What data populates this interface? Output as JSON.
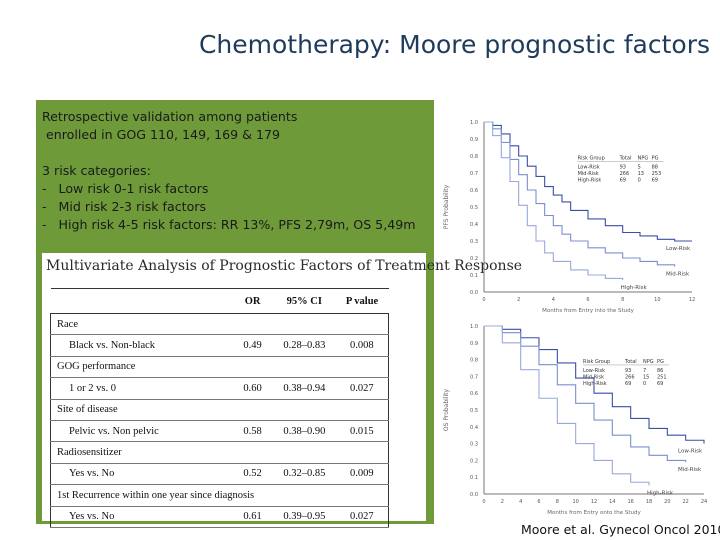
{
  "slide": {
    "title": "Chemotherapy: Moore prognostic factors",
    "citation": "Moore et al. Gynecol Oncol 2010"
  },
  "summary": {
    "lines": [
      "Retrospective validation among patients",
      " enrolled in GOG 110, 149, 169 & 179",
      "",
      "3 risk categories:",
      "-   Low risk 0-1 risk factors",
      "-   Mid risk 2-3 risk factors",
      "-   High risk 4-5 risk factors: RR 13%, PFS 2,79m, OS 5,49m"
    ]
  },
  "table": {
    "title": "Multivariate Analysis of Prognostic Factors of Treatment Response",
    "headers": [
      "",
      "OR",
      "95% CI",
      "P value"
    ],
    "rows": [
      {
        "label": "Race",
        "group": true
      },
      {
        "label": "Black vs. Non-black",
        "or": "0.49",
        "ci": "0.28–0.83",
        "p": "0.008"
      },
      {
        "label": "GOG performance",
        "group": true
      },
      {
        "label": "1 or 2 vs. 0",
        "or": "0.60",
        "ci": "0.38–0.94",
        "p": "0.027"
      },
      {
        "label": "Site of disease",
        "group": true
      },
      {
        "label": "Pelvic vs. Non pelvic",
        "or": "0.58",
        "ci": "0.38–0.90",
        "p": "0.015"
      },
      {
        "label": "Radiosensitizer",
        "group": true
      },
      {
        "label": "Yes vs. No",
        "or": "0.52",
        "ci": "0.32–0.85",
        "p": "0.009"
      },
      {
        "label": "1st Recurrence within one year since diagnosis",
        "group": true
      },
      {
        "label": "Yes vs. No",
        "or": "0.61",
        "ci": "0.39–0.95",
        "p": "0.027"
      }
    ]
  },
  "chart_data": [
    {
      "type": "line",
      "ylabel": "PFS Probability",
      "xlabel": "Months from Entry into the Study",
      "xlim": [
        0,
        12
      ],
      "ylim": [
        0,
        1.0
      ],
      "xticks": [
        "0",
        "2",
        "4",
        "6",
        "8",
        "10",
        "12"
      ],
      "yticks": [
        "0.0",
        "0.1",
        "0.2",
        "0.3",
        "0.4",
        "0.5",
        "0.6",
        "0.7",
        "0.8",
        "0.9",
        "1.0"
      ],
      "legend": {
        "headers": [
          "Risk Group",
          "Total",
          "NPG",
          "PG"
        ],
        "rows": [
          [
            "Low-Risk",
            "93",
            "5",
            "88"
          ],
          [
            "Mid-Risk",
            "266",
            "13",
            "253"
          ],
          [
            "High-Risk",
            "69",
            "0",
            "69"
          ]
        ]
      },
      "series": [
        {
          "label": "Low-Risk",
          "color": "#3a4fa8",
          "x": [
            0,
            0.5,
            1,
            1.5,
            2,
            2.5,
            3,
            3.5,
            4,
            4.5,
            5,
            6,
            7,
            8,
            9,
            10,
            11,
            12
          ],
          "y": [
            1.0,
            0.98,
            0.93,
            0.86,
            0.8,
            0.74,
            0.68,
            0.62,
            0.57,
            0.53,
            0.48,
            0.43,
            0.39,
            0.35,
            0.33,
            0.31,
            0.3,
            0.3
          ]
        },
        {
          "label": "Mid-Risk",
          "color": "#7b8fcf",
          "x": [
            0,
            0.5,
            1,
            1.5,
            2,
            2.5,
            3,
            3.5,
            4,
            4.5,
            5,
            6,
            7,
            8,
            9,
            10,
            11
          ],
          "y": [
            1.0,
            0.96,
            0.88,
            0.78,
            0.69,
            0.6,
            0.52,
            0.45,
            0.39,
            0.34,
            0.3,
            0.26,
            0.23,
            0.2,
            0.18,
            0.16,
            0.15
          ]
        },
        {
          "label": "High-Risk",
          "color": "#9aa8dc",
          "x": [
            0,
            0.5,
            1,
            1.5,
            2,
            2.5,
            3,
            3.5,
            4,
            5,
            6,
            7,
            8
          ],
          "y": [
            1.0,
            0.92,
            0.79,
            0.65,
            0.51,
            0.39,
            0.3,
            0.23,
            0.18,
            0.13,
            0.1,
            0.08,
            0.07
          ]
        }
      ]
    },
    {
      "type": "line",
      "ylabel": "OS Probability",
      "xlabel": "Months from Entry onto the Study",
      "xlim": [
        0,
        24
      ],
      "ylim": [
        0,
        1.0
      ],
      "xticks": [
        "0",
        "2",
        "4",
        "6",
        "8",
        "10",
        "12",
        "14",
        "16",
        "18",
        "20",
        "22",
        "24"
      ],
      "yticks": [
        "0.0",
        "0.1",
        "0.2",
        "0.3",
        "0.4",
        "0.5",
        "0.6",
        "0.7",
        "0.8",
        "0.9",
        "1.0"
      ],
      "legend": {
        "headers": [
          "Risk Group",
          "Total",
          "NPG",
          "PG"
        ],
        "rows": [
          [
            "Low-Risk",
            "93",
            "7",
            "86"
          ],
          [
            "Mid-Risk",
            "266",
            "15",
            "251"
          ],
          [
            "High-Risk",
            "69",
            "0",
            "69"
          ]
        ]
      },
      "series": [
        {
          "label": "Low-Risk",
          "color": "#3a4fa8",
          "x": [
            0,
            2,
            4,
            6,
            8,
            10,
            12,
            14,
            16,
            18,
            20,
            22,
            24
          ],
          "y": [
            1.0,
            0.98,
            0.93,
            0.86,
            0.78,
            0.69,
            0.6,
            0.52,
            0.45,
            0.39,
            0.35,
            0.32,
            0.3
          ]
        },
        {
          "label": "Mid-Risk",
          "color": "#7b8fcf",
          "x": [
            0,
            2,
            4,
            6,
            8,
            10,
            12,
            14,
            16,
            18,
            20,
            22
          ],
          "y": [
            1.0,
            0.96,
            0.88,
            0.77,
            0.65,
            0.54,
            0.44,
            0.35,
            0.28,
            0.23,
            0.2,
            0.19
          ]
        },
        {
          "label": "High-Risk",
          "color": "#9aa8dc",
          "x": [
            0,
            2,
            4,
            6,
            8,
            10,
            12,
            14,
            16,
            18
          ],
          "y": [
            1.0,
            0.9,
            0.74,
            0.57,
            0.42,
            0.3,
            0.2,
            0.12,
            0.07,
            0.05
          ]
        }
      ]
    }
  ]
}
